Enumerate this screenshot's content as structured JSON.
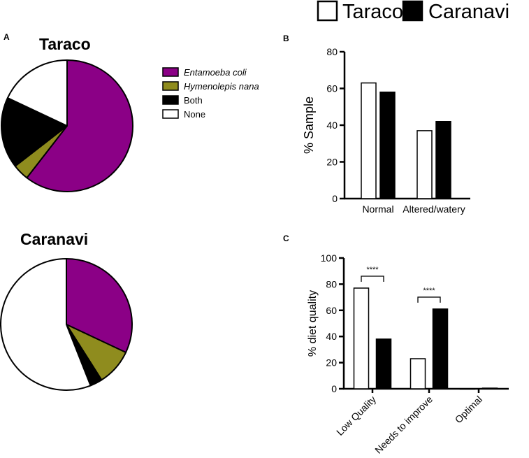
{
  "legend_top": {
    "items": [
      {
        "name": "Taraco",
        "fill": "#ffffff"
      },
      {
        "name": "Caranavi",
        "fill": "#000000"
      }
    ]
  },
  "panel_labels": {
    "a": "A",
    "b": "B",
    "c": "C"
  },
  "colors": {
    "purple": "#8b0086",
    "olive": "#8f8c1e",
    "black": "#000000",
    "white": "#ffffff"
  },
  "chart_data": [
    {
      "type": "pie",
      "title": "Taraco",
      "slices": [
        {
          "label": "Entamoeba coli",
          "value": 60.5,
          "color": "#8b0086"
        },
        {
          "label": "Hymenolepis nana",
          "value": 4.0,
          "color": "#8f8c1e"
        },
        {
          "label": "Both",
          "value": 17.5,
          "color": "#000000"
        },
        {
          "label": "None",
          "value": 18.0,
          "color": "#ffffff"
        }
      ]
    },
    {
      "type": "pie",
      "title": "Caranavi",
      "slices": [
        {
          "label": "Entamoeba coli",
          "value": 32.0,
          "color": "#8b0086"
        },
        {
          "label": "Hymenolepis nana",
          "value": 9.0,
          "color": "#8f8c1e"
        },
        {
          "label": "Both",
          "value": 3.0,
          "color": "#000000"
        },
        {
          "label": "None",
          "value": 56.0,
          "color": "#ffffff"
        }
      ]
    },
    {
      "type": "legend",
      "entries": [
        {
          "label": "Entamoeba coli",
          "color": "#8b0086",
          "italic": true
        },
        {
          "label": "Hymenolepis nana",
          "color": "#8f8c1e",
          "italic": true
        },
        {
          "label": "Both",
          "color": "#000000",
          "italic": false
        },
        {
          "label": "None",
          "color": "#ffffff",
          "italic": false
        }
      ]
    },
    {
      "type": "bar",
      "title": "",
      "categories": [
        "Normal",
        "Altered/watery"
      ],
      "series": [
        {
          "name": "Taraco",
          "values": [
            63,
            37
          ]
        },
        {
          "name": "Caranavi",
          "values": [
            58,
            42
          ]
        }
      ],
      "xlabel": "",
      "ylabel": "% Sample",
      "ylim": [
        0,
        80
      ],
      "yticks": [
        0,
        20,
        40,
        60,
        80
      ]
    },
    {
      "type": "bar",
      "title": "",
      "categories": [
        "Low Quality",
        "Needs to improve",
        "Optimal"
      ],
      "series": [
        {
          "name": "Taraco",
          "values": [
            77,
            23,
            0
          ]
        },
        {
          "name": "Caranavi",
          "values": [
            38,
            61,
            0.5
          ]
        }
      ],
      "xlabel": "",
      "ylabel": "% diet quality",
      "ylim": [
        0,
        100
      ],
      "yticks": [
        0,
        20,
        40,
        60,
        80,
        100
      ],
      "significance": [
        {
          "category": "Low Quality",
          "label": "****"
        },
        {
          "category": "Needs to improve",
          "label": "****"
        }
      ]
    }
  ]
}
